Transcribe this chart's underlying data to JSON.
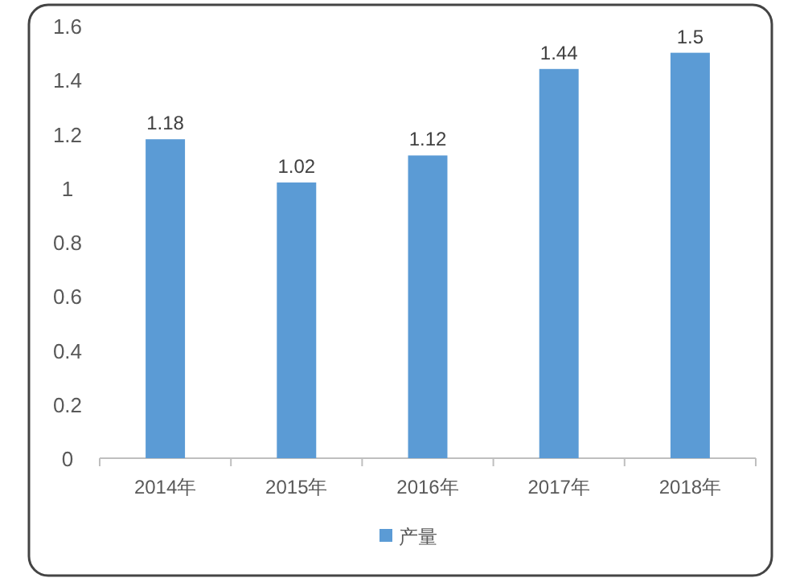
{
  "chart_data": {
    "type": "bar",
    "categories": [
      "2014年",
      "2015年",
      "2016年",
      "2017年",
      "2018年"
    ],
    "series": [
      {
        "name": "产量",
        "color": "#5b9bd5",
        "values": [
          1.18,
          1.02,
          1.12,
          1.44,
          1.5
        ]
      }
    ],
    "ylim": [
      0,
      1.6
    ],
    "yticks": [
      0,
      0.2,
      0.4,
      0.6,
      0.8,
      1,
      1.2,
      1.4,
      1.6
    ],
    "data_labels": true,
    "legend": "bottom",
    "grid": false
  }
}
